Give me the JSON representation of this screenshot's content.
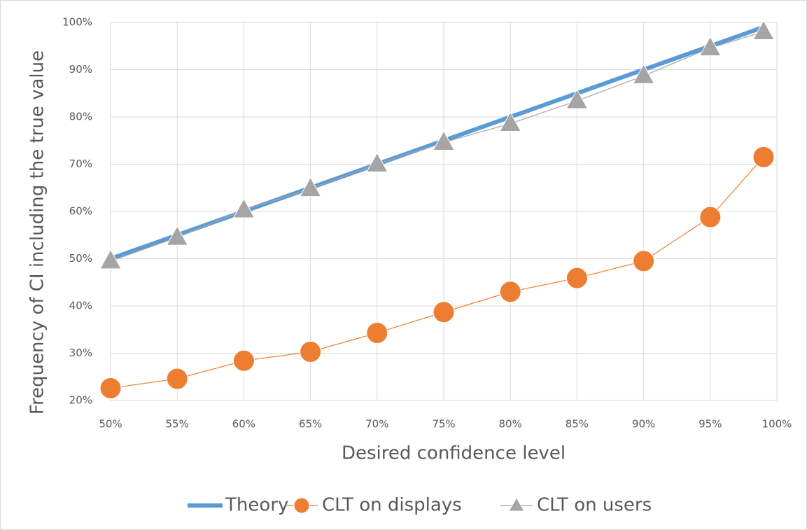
{
  "chart_data": {
    "type": "line",
    "x_label": "Desired confidence level",
    "y_label": "Frequency of CI including the true value",
    "x": [
      50,
      55,
      60,
      65,
      70,
      75,
      80,
      85,
      90,
      95,
      99
    ],
    "series": [
      {
        "name": "Theory",
        "color": "#5b9bd5",
        "marker": "none",
        "values": [
          50,
          55,
          60,
          65,
          70,
          75,
          80,
          85,
          90,
          95,
          99
        ]
      },
      {
        "name": "CLT on displays",
        "color": "#ed7d31",
        "marker": "circle",
        "values": [
          22.6,
          24.6,
          28.4,
          30.3,
          34.3,
          38.7,
          43,
          45.9,
          49.5,
          58.8,
          71.5
        ]
      },
      {
        "name": "CLT on users",
        "color": "#a5a5a5",
        "marker": "triangle",
        "values": [
          49.5,
          54.5,
          60.3,
          64.8,
          70,
          74.6,
          78.6,
          83.4,
          88.7,
          94.6,
          98
        ]
      }
    ],
    "xlim": [
      50,
      100
    ],
    "xticks": [
      {
        "value": 50,
        "label": "50%"
      },
      {
        "value": 55,
        "label": "55%"
      },
      {
        "value": 60,
        "label": "60%"
      },
      {
        "value": 65,
        "label": "65%"
      },
      {
        "value": 70,
        "label": "70%"
      },
      {
        "value": 75,
        "label": "75%"
      },
      {
        "value": 80,
        "label": "80%"
      },
      {
        "value": 85,
        "label": "85%"
      },
      {
        "value": 90,
        "label": "90%"
      },
      {
        "value": 95,
        "label": "95%"
      },
      {
        "value": 100,
        "label": "100%"
      }
    ],
    "ylim": [
      20,
      100
    ],
    "yticks": [
      {
        "value": 20,
        "label": "20%"
      },
      {
        "value": 30,
        "label": "30%"
      },
      {
        "value": 40,
        "label": "40%"
      },
      {
        "value": 50,
        "label": "50%"
      },
      {
        "value": 60,
        "label": "60%"
      },
      {
        "value": 70,
        "label": "70%"
      },
      {
        "value": 80,
        "label": "80%"
      },
      {
        "value": 90,
        "label": "90%"
      },
      {
        "value": 100,
        "label": "100%"
      }
    ],
    "grid": true,
    "legend": "bottom"
  }
}
